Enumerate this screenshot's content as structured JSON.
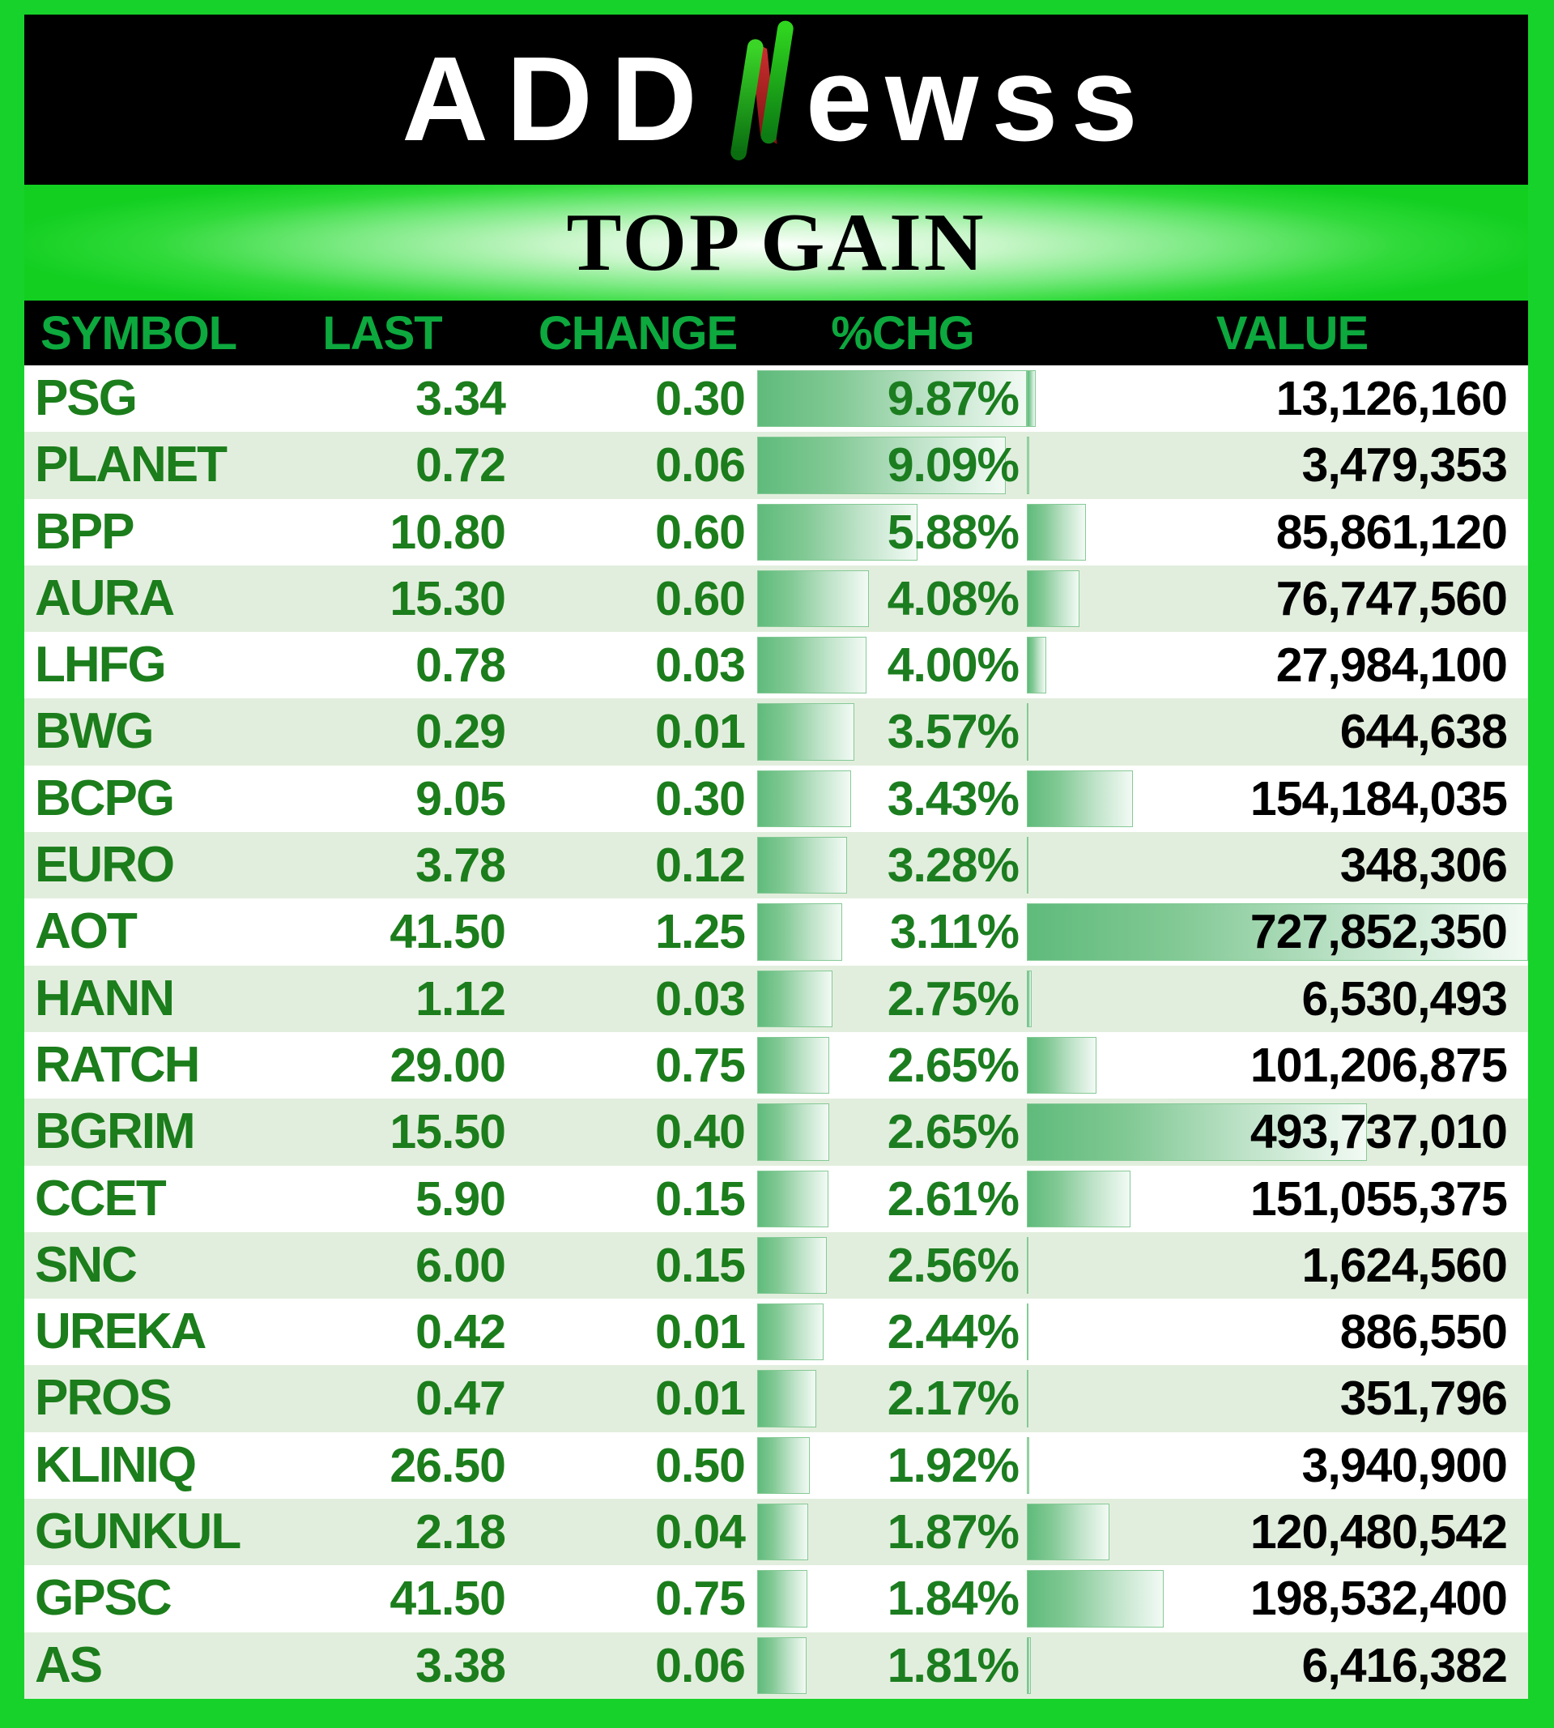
{
  "brand": {
    "logo_left": "ADD",
    "logo_mid": "N",
    "logo_right": "ewss"
  },
  "title": "TOP GAIN",
  "chart_data": {
    "type": "table",
    "title": "TOP GAIN",
    "columns": [
      "SYMBOL",
      "LAST",
      "CHANGE",
      "%CHG",
      "VALUE"
    ],
    "rows": [
      {
        "symbol": "PSG",
        "last": "3.34",
        "change": "0.30",
        "pct": "9.87%",
        "value": "13,126,160",
        "pct_num": 9.87,
        "value_num": 13126160
      },
      {
        "symbol": "PLANET",
        "last": "0.72",
        "change": "0.06",
        "pct": "9.09%",
        "value": "3,479,353",
        "pct_num": 9.09,
        "value_num": 3479353
      },
      {
        "symbol": "BPP",
        "last": "10.80",
        "change": "0.60",
        "pct": "5.88%",
        "value": "85,861,120",
        "pct_num": 5.88,
        "value_num": 85861120
      },
      {
        "symbol": "AURA",
        "last": "15.30",
        "change": "0.60",
        "pct": "4.08%",
        "value": "76,747,560",
        "pct_num": 4.08,
        "value_num": 76747560
      },
      {
        "symbol": "LHFG",
        "last": "0.78",
        "change": "0.03",
        "pct": "4.00%",
        "value": "27,984,100",
        "pct_num": 4.0,
        "value_num": 27984100
      },
      {
        "symbol": "BWG",
        "last": "0.29",
        "change": "0.01",
        "pct": "3.57%",
        "value": "644,638",
        "pct_num": 3.57,
        "value_num": 644638
      },
      {
        "symbol": "BCPG",
        "last": "9.05",
        "change": "0.30",
        "pct": "3.43%",
        "value": "154,184,035",
        "pct_num": 3.43,
        "value_num": 154184035
      },
      {
        "symbol": "EURO",
        "last": "3.78",
        "change": "0.12",
        "pct": "3.28%",
        "value": "348,306",
        "pct_num": 3.28,
        "value_num": 348306
      },
      {
        "symbol": "AOT",
        "last": "41.50",
        "change": "1.25",
        "pct": "3.11%",
        "value": "727,852,350",
        "pct_num": 3.11,
        "value_num": 727852350
      },
      {
        "symbol": "HANN",
        "last": "1.12",
        "change": "0.03",
        "pct": "2.75%",
        "value": "6,530,493",
        "pct_num": 2.75,
        "value_num": 6530493
      },
      {
        "symbol": "RATCH",
        "last": "29.00",
        "change": "0.75",
        "pct": "2.65%",
        "value": "101,206,875",
        "pct_num": 2.65,
        "value_num": 101206875
      },
      {
        "symbol": "BGRIM",
        "last": "15.50",
        "change": "0.40",
        "pct": "2.65%",
        "value": "493,737,010",
        "pct_num": 2.65,
        "value_num": 493737010
      },
      {
        "symbol": "CCET",
        "last": "5.90",
        "change": "0.15",
        "pct": "2.61%",
        "value": "151,055,375",
        "pct_num": 2.61,
        "value_num": 151055375
      },
      {
        "symbol": "SNC",
        "last": "6.00",
        "change": "0.15",
        "pct": "2.56%",
        "value": "1,624,560",
        "pct_num": 2.56,
        "value_num": 1624560
      },
      {
        "symbol": "UREKA",
        "last": "0.42",
        "change": "0.01",
        "pct": "2.44%",
        "value": "886,550",
        "pct_num": 2.44,
        "value_num": 886550
      },
      {
        "symbol": "PROS",
        "last": "0.47",
        "change": "0.01",
        "pct": "2.17%",
        "value": "351,796",
        "pct_num": 2.17,
        "value_num": 351796
      },
      {
        "symbol": "KLINIQ",
        "last": "26.50",
        "change": "0.50",
        "pct": "1.92%",
        "value": "3,940,900",
        "pct_num": 1.92,
        "value_num": 3940900
      },
      {
        "symbol": "GUNKUL",
        "last": "2.18",
        "change": "0.04",
        "pct": "1.87%",
        "value": "120,480,542",
        "pct_num": 1.87,
        "value_num": 120480542
      },
      {
        "symbol": "GPSC",
        "last": "41.50",
        "change": "0.75",
        "pct": "1.84%",
        "value": "198,532,400",
        "pct_num": 1.84,
        "value_num": 198532400
      },
      {
        "symbol": "AS",
        "last": "3.38",
        "change": "0.06",
        "pct": "1.81%",
        "value": "6,416,382",
        "pct_num": 1.81,
        "value_num": 6416382
      }
    ],
    "databars": {
      "pct_chg_max": 9.87,
      "value_max": 727852350,
      "bar_gradient_left": "#5fbb7b",
      "bar_gradient_right": "#f2faf4",
      "bar_border": "#85ca96"
    },
    "legend": "none",
    "grid": "off"
  },
  "colors": {
    "frame_green": "#17d22a",
    "header_bg": "#000000",
    "header_text_green": "#0da83e",
    "cell_text_green": "#1b7d1b",
    "value_text": "#000000",
    "row_bg_odd": "#ffffff",
    "row_bg_even": "#e2eedd",
    "logo_text": "#ffffff",
    "logo_n_green": "#1ec81e",
    "logo_n_red": "#b72626"
  }
}
